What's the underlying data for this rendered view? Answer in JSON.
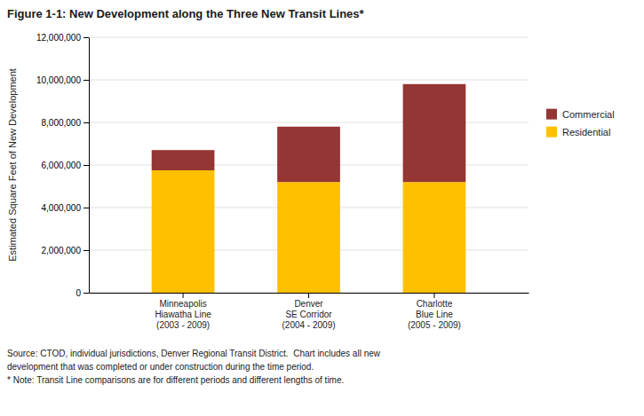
{
  "chart_data": {
    "type": "bar",
    "title": "Figure 1-1: New Development along the Three New Transit Lines*",
    "categories": [
      "Minneapolis\nHiawatha Line\n(2003 - 2009)",
      "Denver\nSE Corridor\n(2004 - 2009)",
      "Charlotte\nBlue Line\n(2005 - 2009)"
    ],
    "series": [
      {
        "name": "Residential",
        "color": "#FFC000",
        "values": [
          5750000,
          5200000,
          5200000
        ]
      },
      {
        "name": "Commercial",
        "color": "#943634",
        "values": [
          950000,
          2600000,
          4600000
        ]
      }
    ],
    "stacked": true,
    "ylabel": "Estimated Square Feet of New Development",
    "ylim": [
      0,
      12000000
    ],
    "yticks": [
      0,
      {
        "value": 2000000,
        "label": "2,000,000"
      },
      {
        "value": 4000000,
        "label": "4,000,000"
      },
      {
        "value": 6000000,
        "label": "6,000,000"
      },
      {
        "value": 8000000,
        "label": "8,000,000"
      },
      {
        "value": 10000000,
        "label": "10,000,000"
      },
      {
        "value": 12000000,
        "label": "12,000,000"
      }
    ],
    "grid": true,
    "legend": "right",
    "annotations": [
      "Source: CTOD, individual jurisdictions, Denver Regional Transit District.  Chart includes all new\ndevelopment that was completed or under construction during the time period.\n* Note: Transit Line comparisons are for different periods and different lengths of time."
    ]
  }
}
